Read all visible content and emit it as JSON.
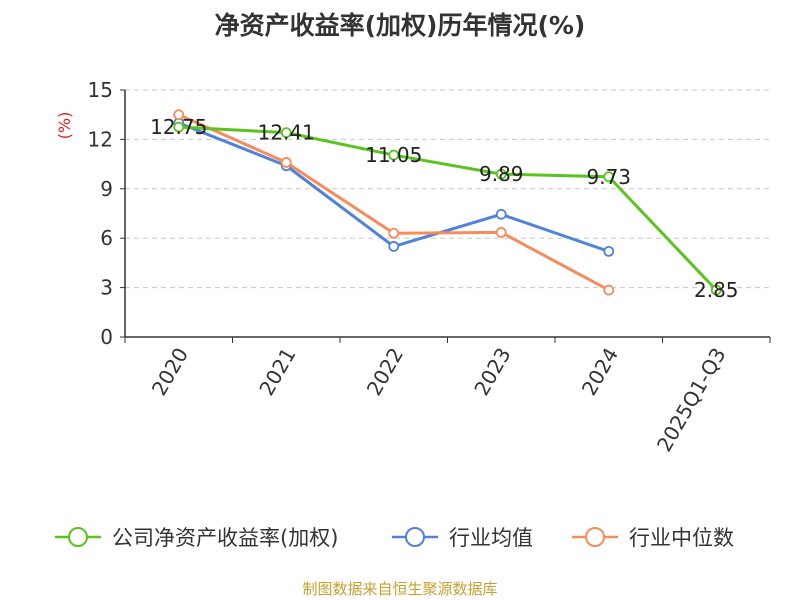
{
  "chart_data": {
    "type": "line",
    "title": "净资产收益率(加权)历年情况(%)",
    "ylabel": "(%)",
    "xlabel": "",
    "ylim": [
      0,
      15
    ],
    "yticks": [
      0,
      3,
      6,
      9,
      12,
      15
    ],
    "grid": true,
    "legend_position": "bottom",
    "categories": [
      "2020",
      "2021",
      "2022",
      "2023",
      "2024",
      "2025Q1-Q3"
    ],
    "series": [
      {
        "name": "公司净资产收益率(加权)",
        "color": "#5ac31e",
        "values": [
          12.75,
          12.41,
          11.05,
          9.89,
          9.73,
          2.85
        ],
        "show_labels": true
      },
      {
        "name": "行业均值",
        "color": "#5082dc",
        "values": [
          13.0,
          10.4,
          5.5,
          7.45,
          5.2,
          null
        ],
        "show_labels": false
      },
      {
        "name": "行业中位数",
        "color": "#f58c5a",
        "values": [
          13.5,
          10.6,
          6.3,
          6.35,
          2.85,
          null
        ],
        "show_labels": false
      }
    ]
  },
  "footer": {
    "source": "制图数据来自恒生聚源数据库"
  }
}
